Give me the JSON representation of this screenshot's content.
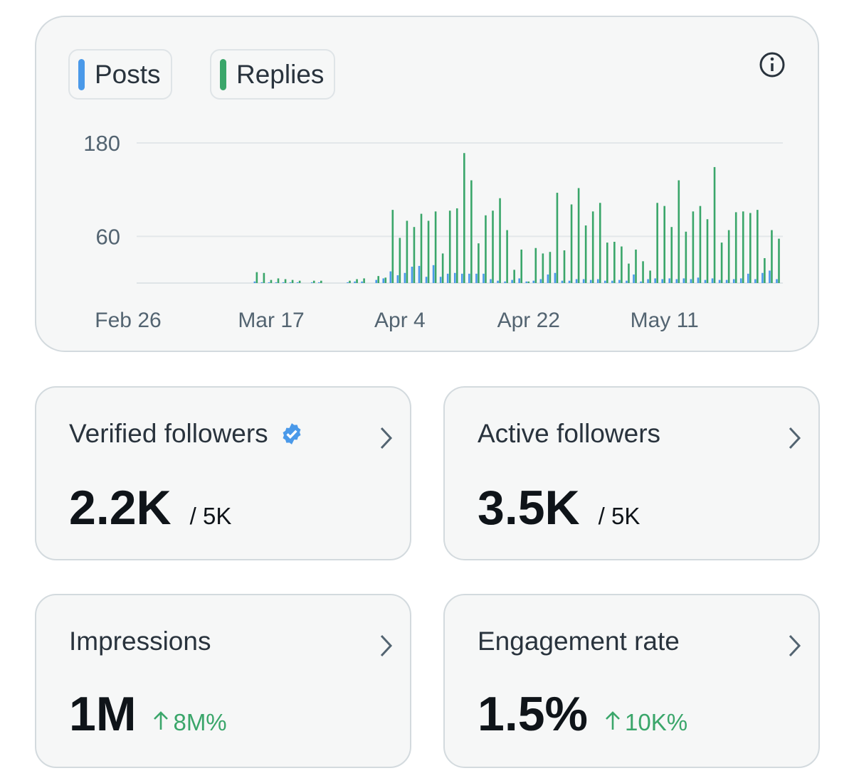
{
  "chart_data": {
    "type": "bar",
    "categories": [
      "Feb 26",
      null,
      null,
      null,
      null,
      null,
      null,
      null,
      null,
      null,
      null,
      null,
      null,
      null,
      null,
      null,
      null,
      null,
      null,
      null,
      "Mar 17",
      null,
      null,
      null,
      null,
      null,
      null,
      null,
      null,
      null,
      null,
      null,
      null,
      null,
      null,
      null,
      null,
      null,
      "Apr 4",
      null,
      null,
      null,
      null,
      null,
      null,
      null,
      null,
      null,
      null,
      null,
      null,
      null,
      null,
      null,
      null,
      null,
      "Apr 22",
      null,
      null,
      null,
      null,
      null,
      null,
      null,
      null,
      null,
      null,
      null,
      null,
      null,
      null,
      null,
      null,
      null,
      null,
      "May 11",
      null,
      null,
      null,
      null,
      null,
      null,
      null,
      null,
      null,
      null,
      null,
      null,
      null,
      null,
      null
    ],
    "series": [
      {
        "name": "Posts",
        "color": "#4a99e9",
        "values": [
          0,
          0,
          0,
          0,
          0,
          0,
          0,
          0,
          0,
          0,
          0,
          0,
          0,
          0,
          0,
          0,
          0,
          2,
          1,
          1,
          1,
          1,
          1,
          1,
          0,
          1,
          1,
          0,
          0,
          0,
          1,
          2,
          2,
          0,
          4,
          6,
          15,
          10,
          13,
          21,
          22,
          8,
          23,
          8,
          12,
          13,
          12,
          12,
          12,
          12,
          5,
          3,
          2,
          4,
          6,
          2,
          3,
          5,
          11,
          13,
          3,
          3,
          5,
          5,
          4,
          5,
          3,
          3,
          4,
          3,
          11,
          2,
          5,
          6,
          5,
          6,
          5,
          6,
          5,
          7,
          4,
          6,
          4,
          4,
          5,
          6,
          12,
          5,
          13,
          16,
          5
        ]
      },
      {
        "name": "Replies",
        "color": "#3aa66a",
        "values": [
          0,
          0,
          0,
          0,
          0,
          0,
          0,
          0,
          0,
          0,
          0,
          0,
          0,
          0,
          0,
          0,
          0,
          14,
          13,
          4,
          6,
          5,
          4,
          3,
          0,
          3,
          3,
          0,
          0,
          0,
          3,
          5,
          6,
          0,
          9,
          7,
          94,
          58,
          80,
          72,
          89,
          80,
          92,
          38,
          93,
          96,
          167,
          132,
          51,
          87,
          93,
          109,
          68,
          17,
          43,
          2,
          45,
          38,
          40,
          116,
          42,
          101,
          122,
          74,
          92,
          103,
          52,
          53,
          47,
          25,
          43,
          28,
          16,
          103,
          99,
          72,
          132,
          66,
          92,
          99,
          82,
          149,
          52,
          68,
          91,
          92,
          90,
          94,
          32,
          68,
          57
        ]
      }
    ],
    "ylim": [
      0,
      180
    ],
    "yticks": [
      60,
      180
    ],
    "grid": true
  },
  "cards": [
    {
      "title": "Verified followers",
      "verified": true,
      "value": "2.2K",
      "suffix": "/ 5K"
    },
    {
      "title": "Active followers",
      "value": "3.5K",
      "suffix": "/ 5K"
    },
    {
      "title": "Impressions",
      "value": "1M",
      "change": "8M%"
    },
    {
      "title": "Engagement rate",
      "value": "1.5%",
      "change": "10K%"
    }
  ]
}
